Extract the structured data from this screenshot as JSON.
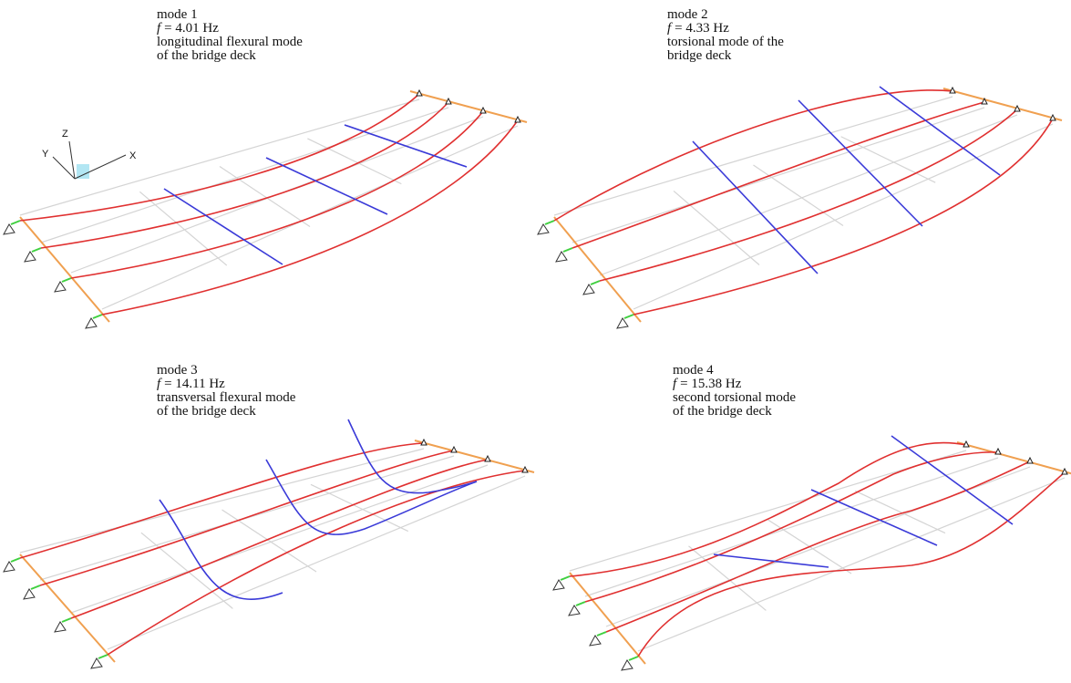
{
  "panels": [
    {
      "mode": "mode 1",
      "symbol": "f",
      "value": "= 4.01 Hz",
      "description": [
        "longitudinal flexural mode",
        "of the bridge deck"
      ]
    },
    {
      "mode": "mode 2",
      "symbol": "f",
      "value": "= 4.33 Hz",
      "description": [
        "torsional mode of the",
        "bridge deck"
      ]
    },
    {
      "mode": "mode 3",
      "symbol": "f",
      "value": "= 14.11 Hz",
      "description": [
        "transversal flexural mode",
        "of the bridge deck"
      ]
    },
    {
      "mode": "mode 4",
      "symbol": "f",
      "value": "= 15.38 Hz",
      "description": [
        "second torsional mode",
        "of the bridge deck"
      ]
    }
  ],
  "axes": {
    "z": "Z",
    "y": "Y",
    "x": "X"
  }
}
